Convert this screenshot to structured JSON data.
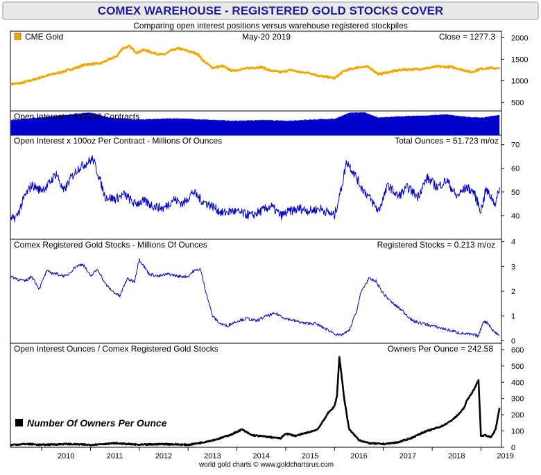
{
  "header": {
    "title": "COMEX WAREHOUSE - REGISTERED GOLD STOCKS COVER",
    "subtitle": "Comparing open interest positions versus warehouse registered stockpiles",
    "footer": "world gold charts © www.goldchartsrus.com"
  },
  "colors": {
    "title_bg": "#e9e9e9",
    "title_text": "#1a1a9c",
    "gold": "#f0a800",
    "blue": "#0000cc",
    "black": "#000000"
  },
  "x_axis": {
    "tick_labels": [
      "2010",
      "2011",
      "2012",
      "2013",
      "2014",
      "2015",
      "2016",
      "2017",
      "2018",
      "2019"
    ],
    "range": [
      2009.36,
      2019.42
    ]
  },
  "chart_data": [
    {
      "type": "line",
      "legend": "CME Gold",
      "date_label": "May-20  2019",
      "readout": "Close = 1277.3",
      "color": "#f0a800",
      "ylim": [
        300,
        2150
      ],
      "y_ticks": [
        500,
        1000,
        1500,
        2000
      ],
      "x": [
        2009.37,
        2009.6,
        2009.9,
        2010.1,
        2010.4,
        2010.7,
        2010.9,
        2011.2,
        2011.4,
        2011.55,
        2011.65,
        2011.8,
        2011.95,
        2012.1,
        2012.3,
        2012.5,
        2012.65,
        2012.8,
        2013.0,
        2013.2,
        2013.3,
        2013.5,
        2013.7,
        2013.9,
        2014.1,
        2014.3,
        2014.5,
        2014.7,
        2014.9,
        2015.1,
        2015.3,
        2015.5,
        2015.7,
        2015.9,
        2016.0,
        2016.2,
        2016.5,
        2016.7,
        2016.9,
        2017.1,
        2017.4,
        2017.7,
        2017.95,
        2018.1,
        2018.4,
        2018.6,
        2018.8,
        2019.0,
        2019.2,
        2019.38
      ],
      "values": [
        920,
        950,
        1050,
        1120,
        1200,
        1300,
        1380,
        1400,
        1500,
        1580,
        1750,
        1800,
        1650,
        1720,
        1640,
        1600,
        1700,
        1750,
        1690,
        1620,
        1480,
        1300,
        1340,
        1230,
        1270,
        1300,
        1320,
        1230,
        1200,
        1250,
        1200,
        1180,
        1110,
        1080,
        1060,
        1230,
        1320,
        1320,
        1150,
        1200,
        1260,
        1270,
        1300,
        1330,
        1320,
        1260,
        1200,
        1280,
        1300,
        1277
      ]
    },
    {
      "type": "area",
      "label": "Open Interest = 517232 Contracts",
      "color": "#0000cc",
      "ylim": [
        0,
        620000
      ],
      "x": [
        2009.37,
        2010.0,
        2010.5,
        2011.0,
        2011.4,
        2012.0,
        2012.6,
        2013.0,
        2013.5,
        2014.0,
        2014.5,
        2015.0,
        2015.5,
        2016.0,
        2016.3,
        2016.6,
        2016.9,
        2017.3,
        2017.8,
        2018.3,
        2018.7,
        2019.0,
        2019.38
      ],
      "values": [
        390000,
        460000,
        520000,
        580000,
        450000,
        400000,
        430000,
        420000,
        390000,
        370000,
        390000,
        370000,
        400000,
        420000,
        570000,
        590000,
        450000,
        480000,
        500000,
        530000,
        470000,
        450000,
        517232
      ]
    },
    {
      "type": "line",
      "label": "Open Interest x 100oz Per Contract - Millions Of Ounces",
      "readout": "Total Ounces = 51.723 m/oz",
      "color": "#0000cc",
      "ylim": [
        30,
        74
      ],
      "y_ticks": [
        40,
        50,
        60,
        70
      ],
      "x": [
        2009.37,
        2009.5,
        2009.65,
        2009.8,
        2009.95,
        2010.1,
        2010.3,
        2010.45,
        2010.6,
        2010.75,
        2010.9,
        2011.05,
        2011.15,
        2011.3,
        2011.5,
        2011.7,
        2011.9,
        2012.1,
        2012.3,
        2012.5,
        2012.7,
        2012.9,
        2013.1,
        2013.3,
        2013.5,
        2013.7,
        2013.9,
        2014.1,
        2014.3,
        2014.5,
        2014.7,
        2014.9,
        2015.1,
        2015.3,
        2015.5,
        2015.7,
        2015.9,
        2016.0,
        2016.1,
        2016.25,
        2016.4,
        2016.55,
        2016.7,
        2016.9,
        2017.1,
        2017.3,
        2017.5,
        2017.7,
        2017.9,
        2018.1,
        2018.3,
        2018.5,
        2018.7,
        2018.85,
        2019.0,
        2019.1,
        2019.2,
        2019.3,
        2019.38
      ],
      "values": [
        38,
        40,
        48,
        53,
        51,
        52,
        58,
        50,
        56,
        60,
        62,
        64,
        58,
        48,
        47,
        49,
        45,
        46,
        44,
        43,
        47,
        45,
        50,
        46,
        44,
        41,
        42,
        41,
        40,
        42,
        44,
        40,
        42,
        43,
        42,
        43,
        41,
        40,
        48,
        63,
        58,
        52,
        48,
        42,
        53,
        48,
        52,
        48,
        56,
        52,
        55,
        48,
        52,
        50,
        42,
        51,
        48,
        45,
        52
      ]
    },
    {
      "type": "line",
      "label": "Comex Registered Gold Stocks - Millions Of Ounces",
      "readout": "Registered Stocks = 0.213 m/oz",
      "color": "#0000cc",
      "ylim": [
        -0.1,
        4.1
      ],
      "y_ticks": [
        0,
        1,
        2,
        3,
        4
      ],
      "x": [
        2009.37,
        2009.5,
        2009.65,
        2009.8,
        2009.95,
        2010.1,
        2010.3,
        2010.5,
        2010.7,
        2010.85,
        2011.0,
        2011.15,
        2011.3,
        2011.45,
        2011.6,
        2011.75,
        2011.9,
        2012.0,
        2012.2,
        2012.4,
        2012.6,
        2012.8,
        2013.0,
        2013.1,
        2013.25,
        2013.35,
        2013.5,
        2013.65,
        2013.8,
        2014.0,
        2014.2,
        2014.4,
        2014.6,
        2014.8,
        2015.0,
        2015.2,
        2015.4,
        2015.6,
        2015.8,
        2015.95,
        2016.1,
        2016.3,
        2016.45,
        2016.55,
        2016.7,
        2016.85,
        2017.0,
        2017.2,
        2017.4,
        2017.6,
        2017.8,
        2018.0,
        2018.2,
        2018.4,
        2018.6,
        2018.8,
        2018.95,
        2019.05,
        2019.15,
        2019.25,
        2019.38
      ],
      "values": [
        2.6,
        2.5,
        2.4,
        2.6,
        2.1,
        2.8,
        2.7,
        2.6,
        3.0,
        3.1,
        2.6,
        2.9,
        2.3,
        2.0,
        1.8,
        2.5,
        2.4,
        3.3,
        2.7,
        2.6,
        2.7,
        2.6,
        2.6,
        2.8,
        2.9,
        2.1,
        1.0,
        0.7,
        0.6,
        0.8,
        0.9,
        0.8,
        1.0,
        1.1,
        0.9,
        0.8,
        0.7,
        0.7,
        0.5,
        0.35,
        0.2,
        0.4,
        1.2,
        2.0,
        2.5,
        2.4,
        1.9,
        1.5,
        1.2,
        0.8,
        0.7,
        0.6,
        0.5,
        0.4,
        0.3,
        0.25,
        0.2,
        0.8,
        0.7,
        0.4,
        0.213
      ]
    },
    {
      "type": "line",
      "label": "Open Interest Ounces / Comex Registered Gold Stocks",
      "readout": "Owners Per Ounce = 242.58",
      "legend": "Number Of Owners Per Ounce",
      "color": "#000000",
      "ylim": [
        0,
        640
      ],
      "y_ticks": [
        0,
        100,
        200,
        300,
        400,
        500,
        600
      ],
      "x": [
        2009.37,
        2009.7,
        2010.0,
        2010.5,
        2011.0,
        2011.5,
        2012.0,
        2012.5,
        2013.0,
        2013.3,
        2013.6,
        2013.9,
        2014.0,
        2014.1,
        2014.3,
        2014.6,
        2014.9,
        2015.0,
        2015.2,
        2015.5,
        2015.65,
        2015.8,
        2015.85,
        2015.95,
        2016.0,
        2016.05,
        2016.1,
        2016.2,
        2016.3,
        2016.5,
        2016.7,
        2017.0,
        2017.3,
        2017.6,
        2017.8,
        2018.0,
        2018.2,
        2018.35,
        2018.5,
        2018.65,
        2018.7,
        2018.8,
        2018.85,
        2018.95,
        2019.0,
        2019.1,
        2019.2,
        2019.3,
        2019.38
      ],
      "values": [
        15,
        20,
        15,
        20,
        15,
        25,
        15,
        20,
        15,
        30,
        50,
        80,
        95,
        110,
        75,
        65,
        55,
        85,
        70,
        95,
        110,
        175,
        205,
        235,
        255,
        315,
        555,
        295,
        110,
        45,
        25,
        20,
        30,
        60,
        90,
        110,
        130,
        155,
        190,
        240,
        280,
        330,
        350,
        415,
        70,
        75,
        60,
        110,
        242.58
      ]
    }
  ]
}
